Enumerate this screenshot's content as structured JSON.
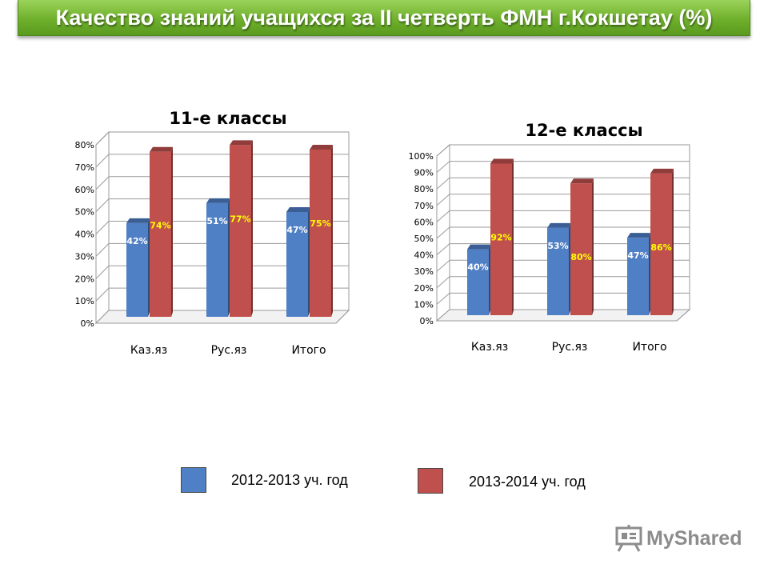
{
  "header": {
    "title": "Качество знаний учащихся  за II четверть ФМН г.Кокшетау (%)"
  },
  "colors": {
    "series1": "#4f7fc5",
    "series2": "#c0504d",
    "label2": "#ffff00",
    "banner": "#7cbf3a"
  },
  "legend": {
    "items": [
      {
        "label": "2012-2013 уч. год",
        "color": "#4f7fc5"
      },
      {
        "label": "2013-2014 уч. год",
        "color": "#c0504d"
      }
    ]
  },
  "logo": {
    "text": "MyShared",
    "icon": "presentation-board-icon"
  },
  "chart_data": [
    {
      "type": "bar",
      "title": "11-е классы",
      "categories": [
        "Каз.яз",
        "Рус.яз",
        "Итого"
      ],
      "series": [
        {
          "name": "2012-2013 уч. год",
          "values": [
            42,
            51,
            47
          ],
          "labels": [
            "42%",
            "51%",
            "47%"
          ]
        },
        {
          "name": "2013-2014 уч. год",
          "values": [
            74,
            77,
            75
          ],
          "labels": [
            "74%",
            "77%",
            "75%"
          ]
        }
      ],
      "ylim": [
        0,
        80
      ],
      "yticks": [
        "0%",
        "10%",
        "20%",
        "30%",
        "40%",
        "50%",
        "60%",
        "70%",
        "80%"
      ],
      "grid": true,
      "legend": "bottom",
      "projection": "3d"
    },
    {
      "type": "bar",
      "title": "12-е классы",
      "categories": [
        "Каз.яз",
        "Рус.яз",
        "Итого"
      ],
      "series": [
        {
          "name": "2012-2013 уч. год",
          "values": [
            40,
            53,
            47
          ],
          "labels": [
            "40%",
            "53%",
            "47%"
          ]
        },
        {
          "name": "2013-2014 уч. год",
          "values": [
            92,
            80,
            86
          ],
          "labels": [
            "92%",
            "80%",
            "86%"
          ]
        }
      ],
      "ylim": [
        0,
        100
      ],
      "yticks": [
        "0%",
        "10%",
        "20%",
        "30%",
        "40%",
        "50%",
        "60%",
        "70%",
        "80%",
        "90%",
        "100%"
      ],
      "grid": true,
      "legend": "bottom",
      "projection": "3d"
    }
  ]
}
